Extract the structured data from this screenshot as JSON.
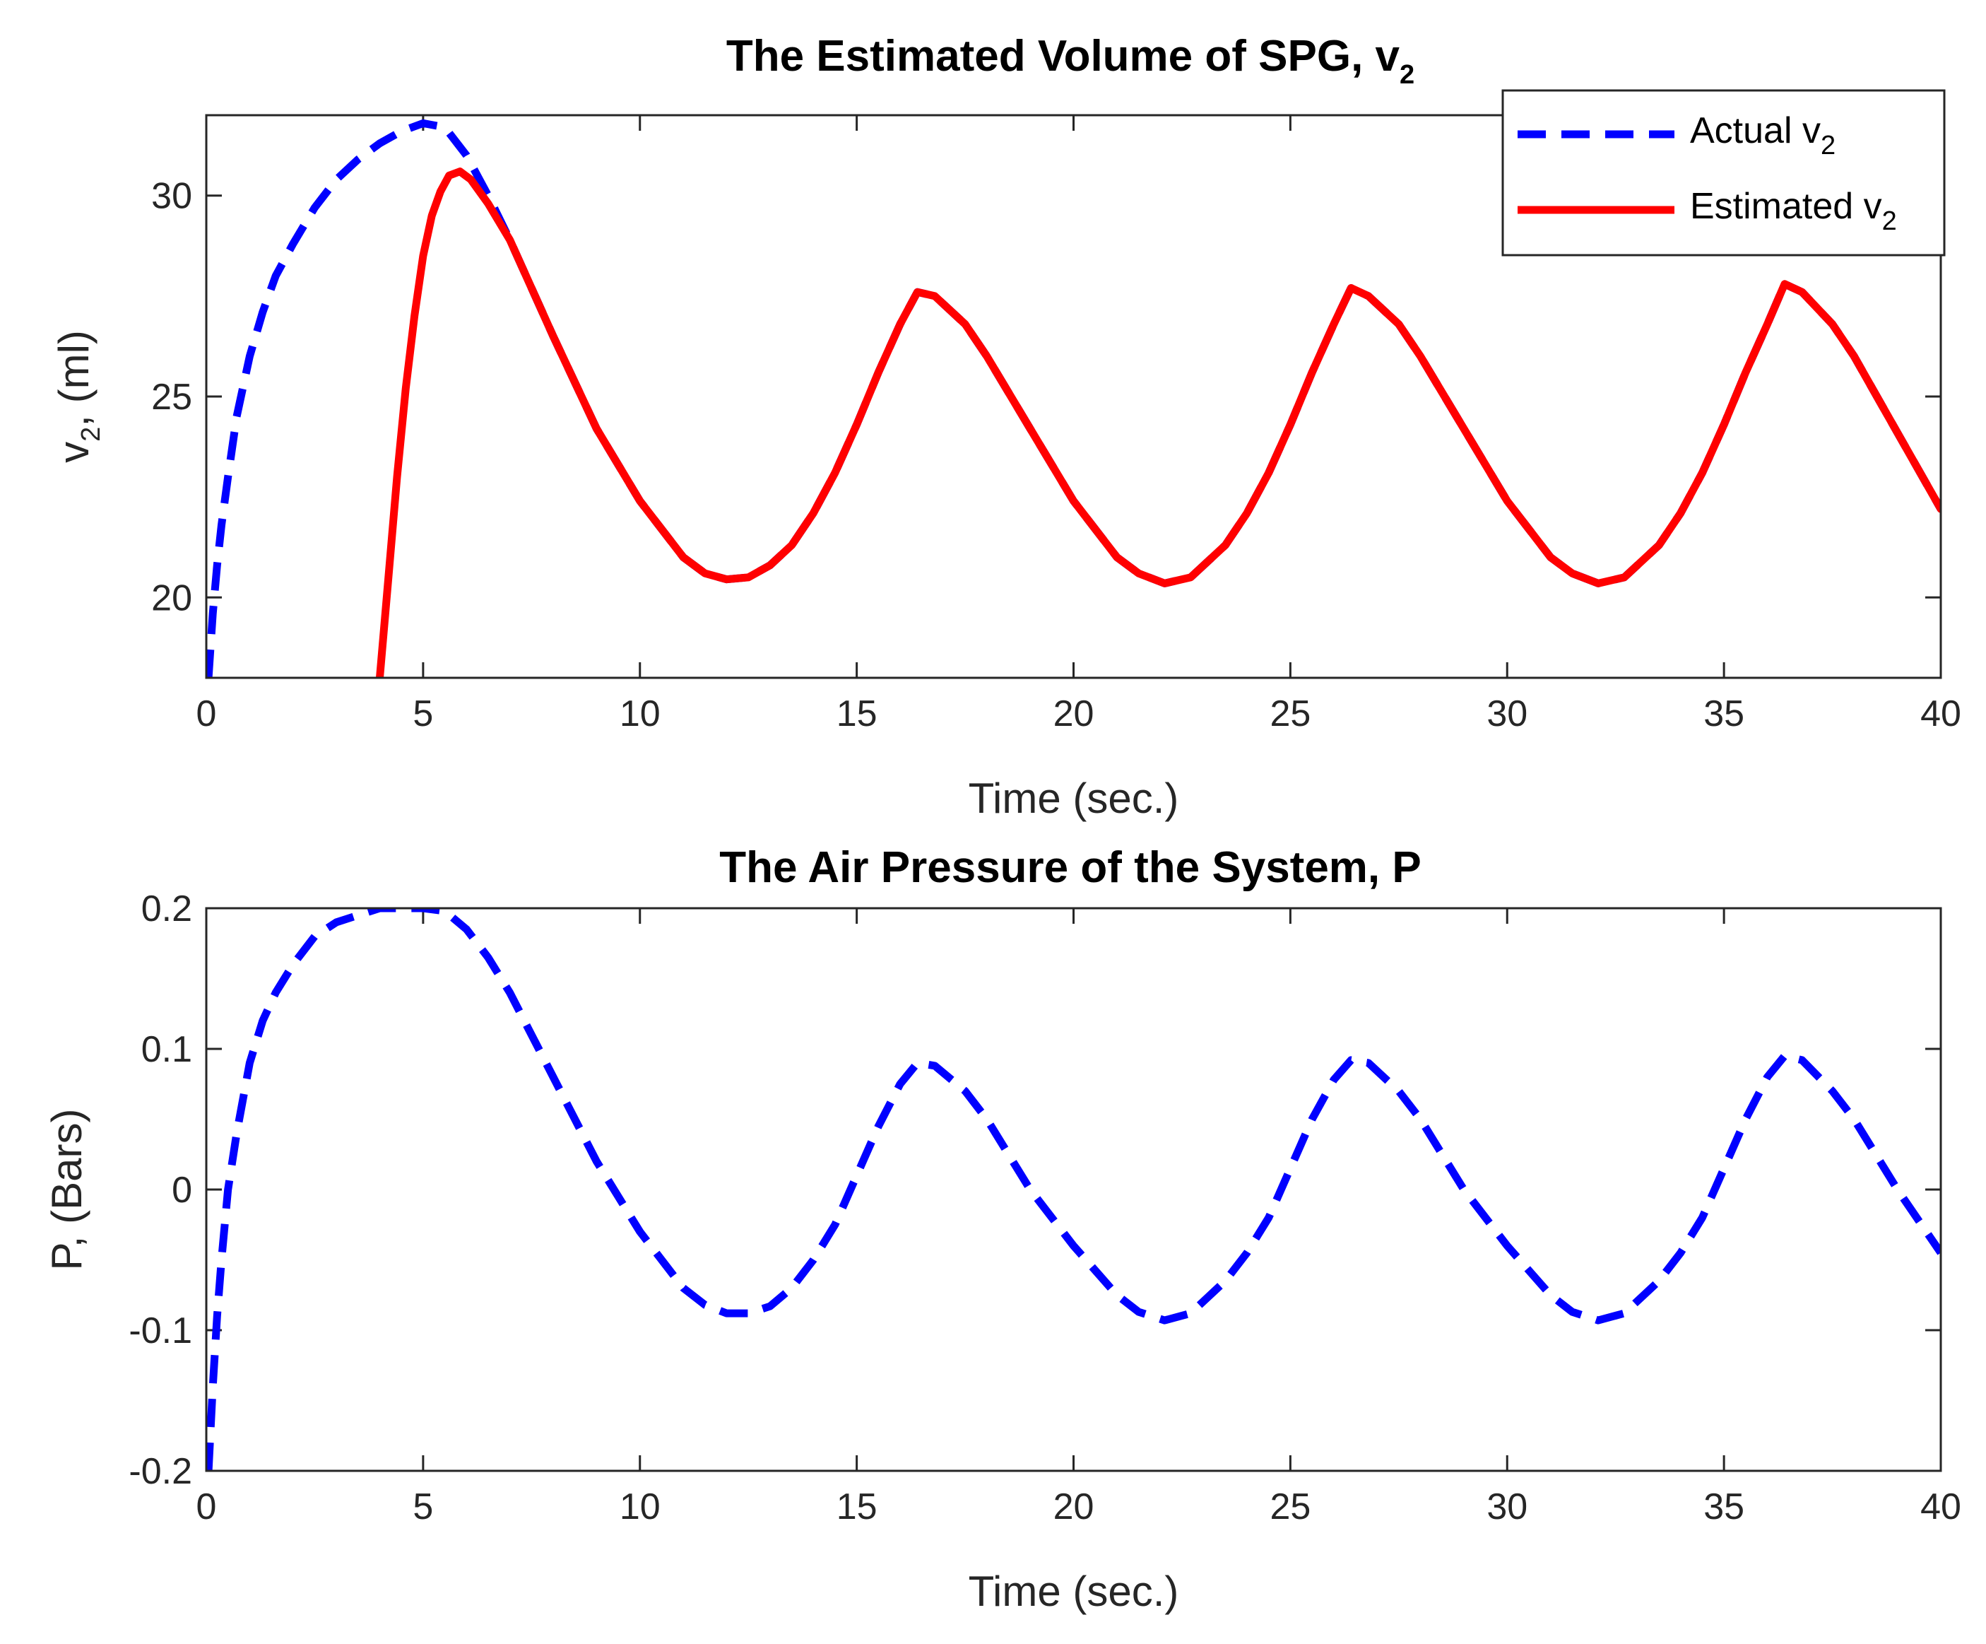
{
  "chart_data": [
    {
      "type": "line",
      "title": "The Estimated Volume of SPG, v",
      "title_subscript": "2",
      "xlabel": "Time (sec.)",
      "ylabel_main": "v",
      "ylabel_subscript": "2",
      "ylabel_suffix": ", (ml)",
      "xlim": [
        0,
        40
      ],
      "ylim": [
        18,
        32
      ],
      "xticks": [
        0,
        5,
        10,
        15,
        20,
        25,
        30,
        35,
        40
      ],
      "xtick_labels": [
        "0",
        "5",
        "10",
        "15",
        "20",
        "25",
        "30",
        "35",
        "40"
      ],
      "yticks": [
        20,
        25,
        30
      ],
      "ytick_labels": [
        "20",
        "25",
        "30"
      ],
      "legend_position": "top-right",
      "series": [
        {
          "name": "Actual v",
          "name_subscript": "2",
          "color": "#0000ff",
          "style": "dashed",
          "x": [
            0.05,
            0.15,
            0.25,
            0.35,
            0.5,
            0.7,
            1.0,
            1.3,
            1.6,
            2.0,
            2.5,
            3.0,
            3.5,
            4.0,
            4.5,
            5.0,
            5.5,
            6.0,
            6.5,
            7.0,
            7.5,
            8.0,
            9.0,
            10.0,
            11.0,
            11.5,
            12.0,
            12.5,
            13.0,
            13.5,
            14.0,
            14.5,
            15.0,
            15.5,
            16.0,
            16.4,
            16.8,
            17.5,
            18.0,
            19.0,
            20.0,
            21.0,
            21.5,
            22.1,
            22.7,
            23.5,
            24.0,
            24.5,
            25.0,
            25.5,
            26.0,
            26.4,
            26.8,
            27.5,
            28.0,
            29.0,
            30.0,
            31.0,
            31.5,
            32.1,
            32.7,
            33.5,
            34.0,
            34.5,
            35.0,
            35.5,
            36.0,
            36.4,
            36.8,
            37.5,
            38.0,
            39.0,
            40.0
          ],
          "y": [
            18.0,
            19.6,
            20.8,
            21.8,
            23.0,
            24.5,
            26.0,
            27.1,
            28.0,
            28.8,
            29.7,
            30.4,
            30.9,
            31.3,
            31.6,
            31.8,
            31.7,
            31.0,
            30.0,
            28.9,
            27.7,
            26.5,
            24.2,
            22.4,
            21.0,
            20.6,
            20.45,
            20.5,
            20.8,
            21.3,
            22.1,
            23.1,
            24.3,
            25.6,
            26.8,
            27.6,
            27.5,
            26.8,
            26.0,
            24.2,
            22.4,
            21.0,
            20.6,
            20.35,
            20.5,
            21.3,
            22.1,
            23.1,
            24.3,
            25.6,
            26.8,
            27.7,
            27.5,
            26.8,
            26.0,
            24.2,
            22.4,
            21.0,
            20.6,
            20.35,
            20.5,
            21.3,
            22.1,
            23.1,
            24.3,
            25.6,
            26.8,
            27.8,
            27.6,
            26.8,
            26.0,
            24.1,
            22.2
          ]
        },
        {
          "name": "Estimated v",
          "name_subscript": "2",
          "color": "#ff0000",
          "style": "solid",
          "x": [
            4.0,
            4.2,
            4.4,
            4.6,
            4.8,
            5.0,
            5.2,
            5.4,
            5.6,
            5.85,
            6.1,
            6.5,
            7.0,
            7.5,
            8.0,
            9.0,
            10.0,
            11.0,
            11.5,
            12.0,
            12.5,
            13.0,
            13.5,
            14.0,
            14.5,
            15.0,
            15.5,
            16.0,
            16.4,
            16.8,
            17.5,
            18.0,
            19.0,
            20.0,
            21.0,
            21.5,
            22.1,
            22.7,
            23.5,
            24.0,
            24.5,
            25.0,
            25.5,
            26.0,
            26.4,
            26.8,
            27.5,
            28.0,
            29.0,
            30.0,
            31.0,
            31.5,
            32.1,
            32.7,
            33.5,
            34.0,
            34.5,
            35.0,
            35.5,
            36.0,
            36.4,
            36.8,
            37.5,
            38.0,
            39.0,
            40.0
          ],
          "y": [
            18.0,
            20.5,
            23.0,
            25.2,
            27.0,
            28.5,
            29.5,
            30.1,
            30.5,
            30.6,
            30.4,
            29.8,
            28.9,
            27.7,
            26.5,
            24.2,
            22.4,
            21.0,
            20.6,
            20.45,
            20.5,
            20.8,
            21.3,
            22.1,
            23.1,
            24.3,
            25.6,
            26.8,
            27.6,
            27.5,
            26.8,
            26.0,
            24.2,
            22.4,
            21.0,
            20.6,
            20.35,
            20.5,
            21.3,
            22.1,
            23.1,
            24.3,
            25.6,
            26.8,
            27.7,
            27.5,
            26.8,
            26.0,
            24.2,
            22.4,
            21.0,
            20.6,
            20.35,
            20.5,
            21.3,
            22.1,
            23.1,
            24.3,
            25.6,
            26.8,
            27.8,
            27.6,
            26.8,
            26.0,
            24.1,
            22.2
          ]
        }
      ]
    },
    {
      "type": "line",
      "title": "The Air Pressure of the System, P",
      "xlabel": "Time (sec.)",
      "ylabel": "P, (Bars)",
      "xlim": [
        0,
        40
      ],
      "ylim": [
        -0.2,
        0.2
      ],
      "xticks": [
        0,
        5,
        10,
        15,
        20,
        25,
        30,
        35,
        40
      ],
      "xtick_labels": [
        "0",
        "5",
        "10",
        "15",
        "20",
        "25",
        "30",
        "35",
        "40"
      ],
      "yticks": [
        -0.2,
        -0.1,
        0,
        0.1,
        0.2
      ],
      "ytick_labels": [
        "-0.2",
        "-0.1",
        "0",
        "0.1",
        "0.2"
      ],
      "series": [
        {
          "name": "P",
          "color": "#0000ff",
          "style": "dashed",
          "x": [
            0.05,
            0.15,
            0.25,
            0.35,
            0.5,
            0.7,
            1.0,
            1.3,
            1.6,
            2.0,
            2.5,
            3.0,
            3.5,
            4.0,
            4.5,
            5.0,
            5.5,
            6.0,
            6.5,
            7.0,
            7.5,
            8.0,
            9.0,
            10.0,
            11.0,
            11.5,
            12.0,
            12.5,
            13.0,
            13.5,
            14.0,
            14.5,
            15.0,
            15.5,
            16.0,
            16.4,
            16.8,
            17.5,
            18.0,
            19.0,
            20.0,
            21.0,
            21.5,
            22.1,
            22.7,
            23.5,
            24.0,
            24.5,
            25.0,
            25.5,
            26.0,
            26.4,
            26.8,
            27.5,
            28.0,
            29.0,
            30.0,
            31.0,
            31.5,
            32.1,
            32.7,
            33.5,
            34.0,
            34.5,
            35.0,
            35.5,
            36.0,
            36.4,
            36.8,
            37.5,
            38.0,
            39.0,
            40.0
          ],
          "y": [
            -0.2,
            -0.14,
            -0.09,
            -0.05,
            0.0,
            0.04,
            0.09,
            0.12,
            0.14,
            0.16,
            0.18,
            0.19,
            0.195,
            0.2,
            0.2,
            0.2,
            0.198,
            0.185,
            0.165,
            0.14,
            0.11,
            0.08,
            0.02,
            -0.03,
            -0.07,
            -0.082,
            -0.088,
            -0.088,
            -0.083,
            -0.07,
            -0.05,
            -0.025,
            0.01,
            0.045,
            0.075,
            0.09,
            0.088,
            0.07,
            0.05,
            0.0,
            -0.04,
            -0.075,
            -0.087,
            -0.093,
            -0.088,
            -0.065,
            -0.045,
            -0.02,
            0.015,
            0.05,
            0.078,
            0.092,
            0.09,
            0.07,
            0.05,
            0.0,
            -0.04,
            -0.075,
            -0.087,
            -0.093,
            -0.088,
            -0.065,
            -0.045,
            -0.02,
            0.015,
            0.05,
            0.08,
            0.095,
            0.092,
            0.07,
            0.05,
            0.0,
            -0.045
          ]
        }
      ]
    }
  ]
}
